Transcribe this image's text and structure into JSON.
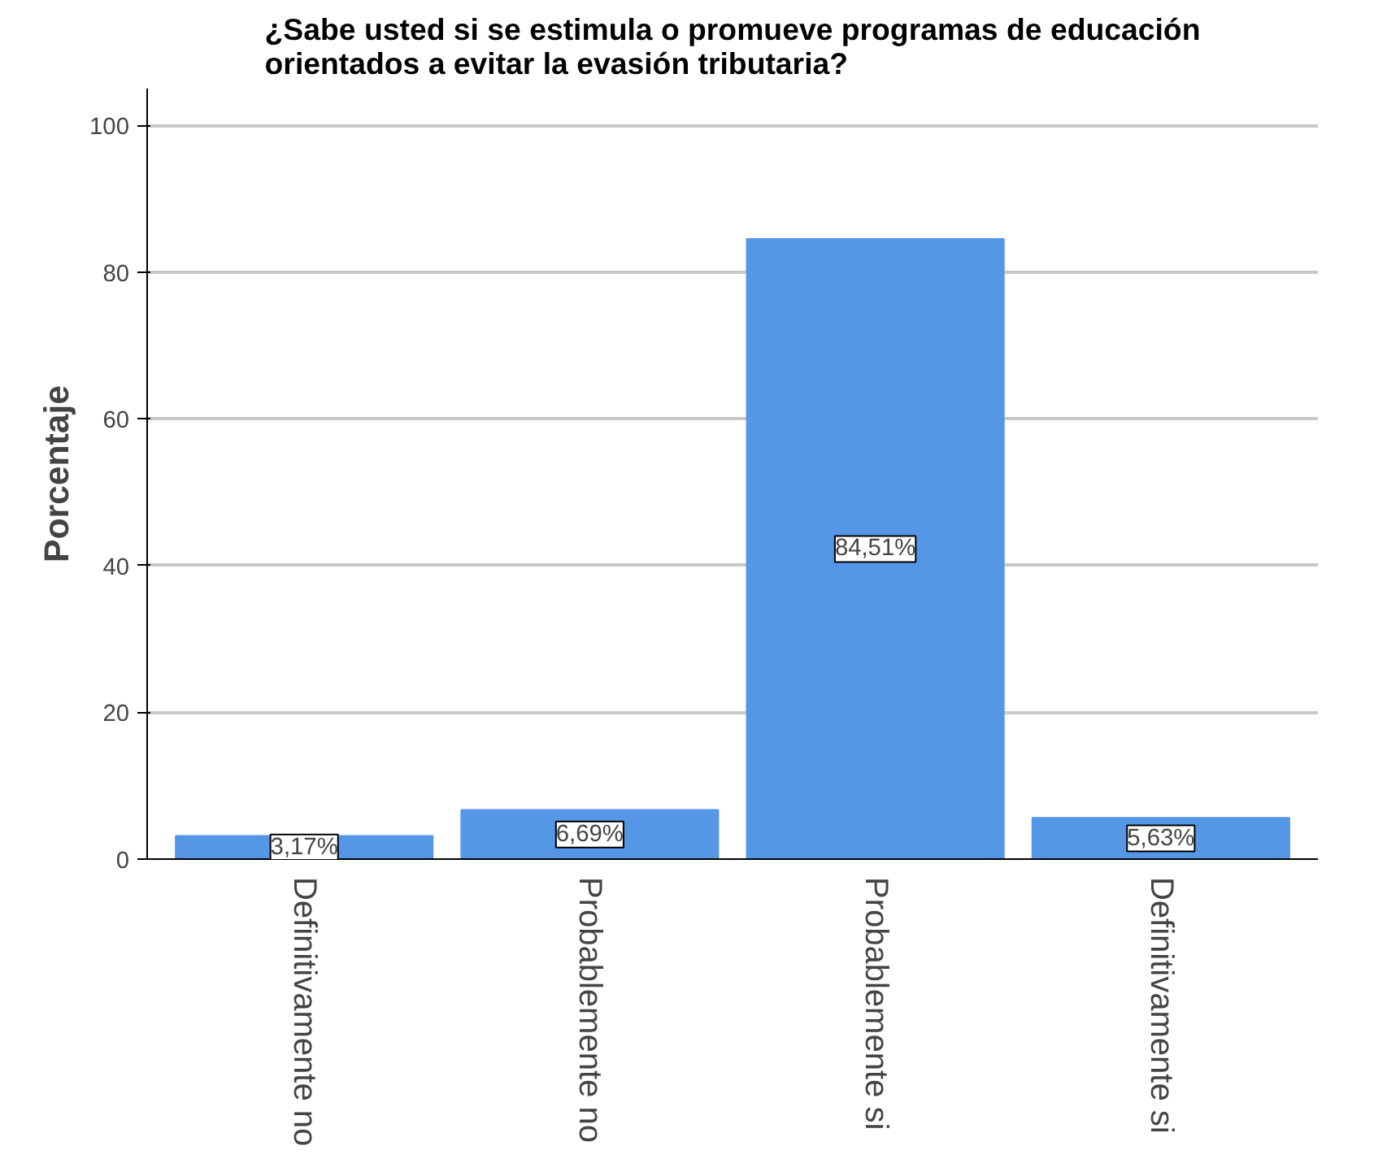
{
  "chart_data": {
    "type": "bar",
    "title": "¿Sabe usted si se estimula o promueve programas de educación\norientados a evitar la evasión tributaria?",
    "ylabel": "Porcentaje",
    "categories": [
      "Definitivamente no",
      "Probablemente no",
      "Probablemente si",
      "Definitivamente si"
    ],
    "values": [
      3.17,
      6.69,
      84.51,
      5.63
    ],
    "value_labels": [
      "3,17%",
      "6,69%",
      "84,51%",
      "5,63%"
    ],
    "color": "#5596e6",
    "ylim": [
      0,
      105
    ],
    "yticks": [
      0,
      20,
      40,
      60,
      80,
      100
    ],
    "grid": "y"
  }
}
